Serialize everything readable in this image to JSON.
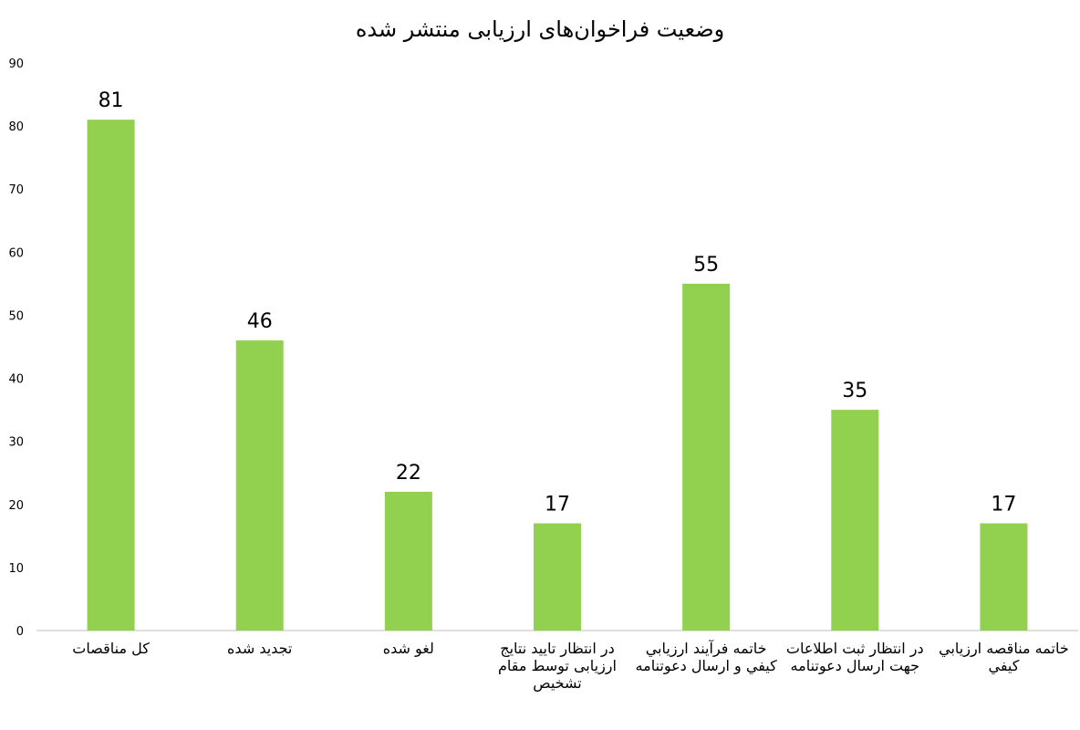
{
  "chart_data": {
    "type": "bar",
    "title": "وضعیت فراخوان‌های ارزیابی منتشر شده",
    "xlabel": "",
    "ylabel": "",
    "categories": [
      "کل مناقصات",
      "تجدید شده",
      "لغو شده",
      "در انتظار تایید نتایج ارزیابی توسط مقام تشخیص",
      "خاتمه فرآیند ارزیابي كيفي و ارسال دعوتنامه",
      "در انتظار ثبت اطلاعات جهت ارسال دعوتنامه",
      "خاتمه مناقصه ارزيابي كيفي"
    ],
    "values": [
      81,
      46,
      22,
      17,
      55,
      35,
      17
    ],
    "data_labels": [
      "81",
      "46",
      "22",
      "17",
      "55",
      "35",
      "17"
    ],
    "y_ticks": [
      "0",
      "10",
      "20",
      "30",
      "40",
      "50",
      "60",
      "70",
      "80",
      "90"
    ],
    "ylim": [
      0,
      90
    ],
    "grid": false,
    "legend": "none",
    "bar_color": "#92d050",
    "axis_color": "#bfbfbf"
  }
}
